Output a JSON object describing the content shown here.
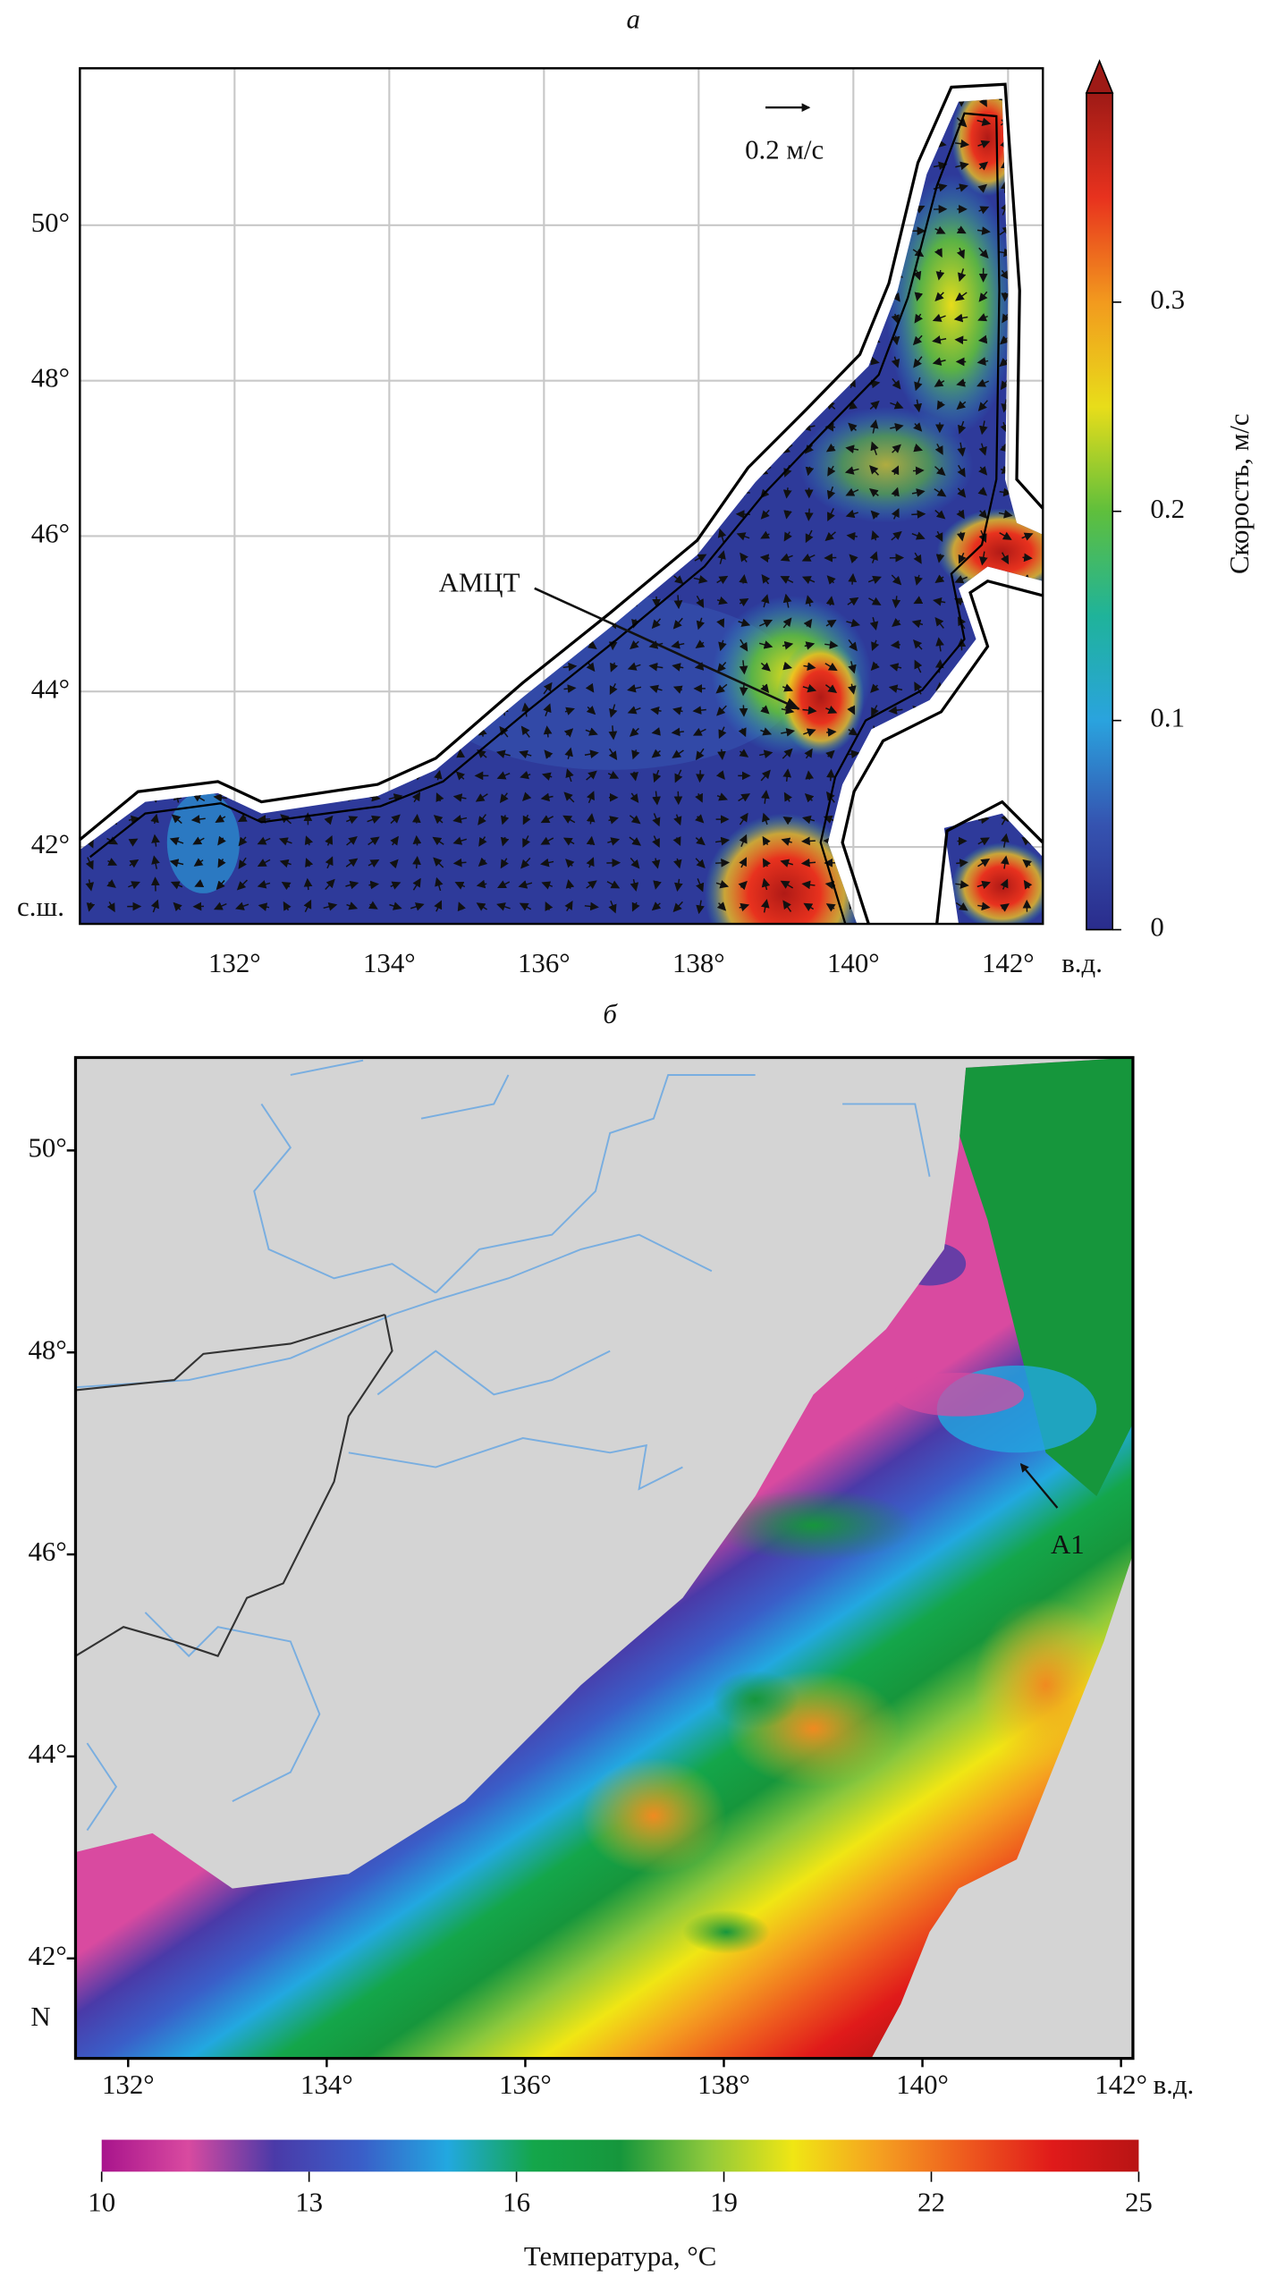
{
  "panel_a": {
    "label": "а",
    "xlim": [
      130,
      142.45
    ],
    "ylim": [
      41.01,
      52.02
    ],
    "xticks": [
      {
        "value": 132,
        "label": "132°"
      },
      {
        "value": 134,
        "label": "134°"
      },
      {
        "value": 136,
        "label": "136°"
      },
      {
        "value": 138,
        "label": "138°"
      },
      {
        "value": 140,
        "label": "140°"
      },
      {
        "value": 142,
        "label": "142°"
      }
    ],
    "yticks": [
      {
        "value": 42,
        "label": "42°"
      },
      {
        "value": 44,
        "label": "44°"
      },
      {
        "value": 46,
        "label": "46°"
      },
      {
        "value": 48,
        "label": "48°"
      },
      {
        "value": 50,
        "label": "50°"
      }
    ],
    "x_unit": "в.д.",
    "y_unit": "с.ш.",
    "grid": true,
    "scale_arrow_label": "0.2 м/с",
    "annotation": "АМЦТ",
    "colorbar": {
      "label": "Скорость, м/с",
      "lim": [
        0,
        0.4
      ],
      "ticks": [
        0,
        0.1,
        0.2,
        0.3
      ],
      "colormap": [
        "#2a2c8c",
        "#3553b0",
        "#2aa3de",
        "#1fb39a",
        "#5fbf3c",
        "#e8dd1a",
        "#f29a1e",
        "#e8321e",
        "#9e1a16"
      ]
    }
  },
  "panel_b": {
    "label": "б",
    "xlim": [
      131.47,
      142.12
    ],
    "ylim": [
      41.01,
      50.92
    ],
    "xticks": [
      {
        "value": 132,
        "label": "132°"
      },
      {
        "value": 134,
        "label": "134°"
      },
      {
        "value": 136,
        "label": "136°"
      },
      {
        "value": 138,
        "label": "138°"
      },
      {
        "value": 140,
        "label": "140°"
      },
      {
        "value": 142,
        "label": "142°"
      }
    ],
    "yticks": [
      {
        "value": 42,
        "label": "42°"
      },
      {
        "value": 44,
        "label": "44°"
      },
      {
        "value": 46,
        "label": "46°"
      },
      {
        "value": 48,
        "label": "48°"
      },
      {
        "value": 50,
        "label": "50°"
      }
    ],
    "x_unit": "в.д.",
    "y_unit": "N",
    "annotation": "A1",
    "colorbar": {
      "label": "Температура, °C",
      "lim": [
        10,
        25
      ],
      "ticks": [
        10,
        13,
        16,
        19,
        22,
        25
      ],
      "colormap": [
        "#a8148c",
        "#d94aa0",
        "#4a3aa8",
        "#3a5ec8",
        "#22a8e0",
        "#14a64a",
        "#16963c",
        "#8cc83c",
        "#f0e614",
        "#f5a020",
        "#ee5a1e",
        "#e01a1a",
        "#b81414"
      ]
    }
  }
}
